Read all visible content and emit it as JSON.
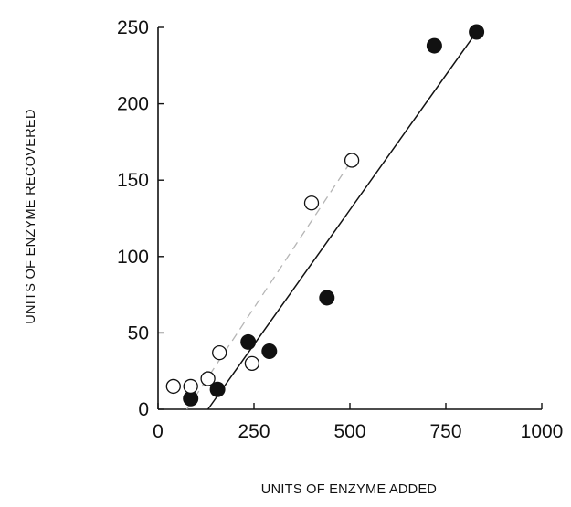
{
  "colors": {
    "background": "#ffffff",
    "ink": "#111111",
    "dashed_line": "#b5b5b5"
  },
  "chart_data": {
    "type": "scatter",
    "xlabel": "UNITS OF ENZYME ADDED",
    "ylabel": "UNITS OF ENZYME RECOVERED",
    "xlim": [
      0,
      1000
    ],
    "ylim": [
      0,
      250
    ],
    "xticks": [
      0,
      250,
      500,
      750,
      1000
    ],
    "yticks": [
      0,
      50,
      100,
      150,
      200,
      250
    ],
    "xtick_labels": [
      "0",
      "250",
      "500",
      "750",
      "1000"
    ],
    "ytick_labels": [
      "0",
      "50",
      "100",
      "150",
      "200",
      "250"
    ],
    "grid": false,
    "legend": "none",
    "series": [
      {
        "marker": "filled-circle",
        "points": [
          {
            "x": 85,
            "y": 7
          },
          {
            "x": 155,
            "y": 13
          },
          {
            "x": 235,
            "y": 44
          },
          {
            "x": 290,
            "y": 38
          },
          {
            "x": 440,
            "y": 73
          },
          {
            "x": 720,
            "y": 238
          },
          {
            "x": 830,
            "y": 247
          }
        ],
        "fit_line": {
          "style": "solid",
          "from": [
            130,
            0
          ],
          "to": [
            830,
            247
          ]
        }
      },
      {
        "marker": "open-circle",
        "points": [
          {
            "x": 40,
            "y": 15
          },
          {
            "x": 85,
            "y": 15
          },
          {
            "x": 130,
            "y": 20
          },
          {
            "x": 160,
            "y": 37
          },
          {
            "x": 245,
            "y": 30
          },
          {
            "x": 400,
            "y": 135
          },
          {
            "x": 505,
            "y": 163
          }
        ],
        "fit_line": {
          "style": "dashed",
          "from": [
            75,
            0
          ],
          "to": [
            510,
            165
          ]
        }
      }
    ]
  }
}
